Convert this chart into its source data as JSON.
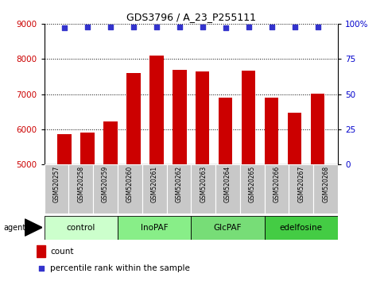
{
  "title": "GDS3796 / A_23_P255111",
  "samples": [
    "GSM520257",
    "GSM520258",
    "GSM520259",
    "GSM520260",
    "GSM520261",
    "GSM520262",
    "GSM520263",
    "GSM520264",
    "GSM520265",
    "GSM520266",
    "GSM520267",
    "GSM520268"
  ],
  "bar_values": [
    5850,
    5900,
    6230,
    7600,
    8100,
    7700,
    7650,
    6900,
    7680,
    6900,
    6470,
    7010
  ],
  "percentile_values": [
    97,
    98,
    98,
    98,
    98,
    98,
    98,
    97,
    98,
    98,
    98,
    98
  ],
  "ylim_left": [
    5000,
    9000
  ],
  "ylim_right": [
    0,
    100
  ],
  "yticks_left": [
    5000,
    6000,
    7000,
    8000,
    9000
  ],
  "yticks_right": [
    0,
    25,
    50,
    75,
    100
  ],
  "ytick_labels_right": [
    "0",
    "25",
    "50",
    "75",
    "100%"
  ],
  "bar_color": "#cc0000",
  "dot_color": "#3333cc",
  "groups": [
    {
      "label": "control",
      "start": 0,
      "end": 3,
      "color": "#ccffcc"
    },
    {
      "label": "InoPAF",
      "start": 3,
      "end": 6,
      "color": "#88ee88"
    },
    {
      "label": "GlcPAF",
      "start": 6,
      "end": 9,
      "color": "#77dd77"
    },
    {
      "label": "edelfosine",
      "start": 9,
      "end": 12,
      "color": "#44cc44"
    }
  ],
  "left_tick_color": "#cc0000",
  "right_tick_color": "#0000cc",
  "background_label": "#c8c8c8",
  "legend_count_color": "#cc0000",
  "legend_dot_color": "#3333cc"
}
